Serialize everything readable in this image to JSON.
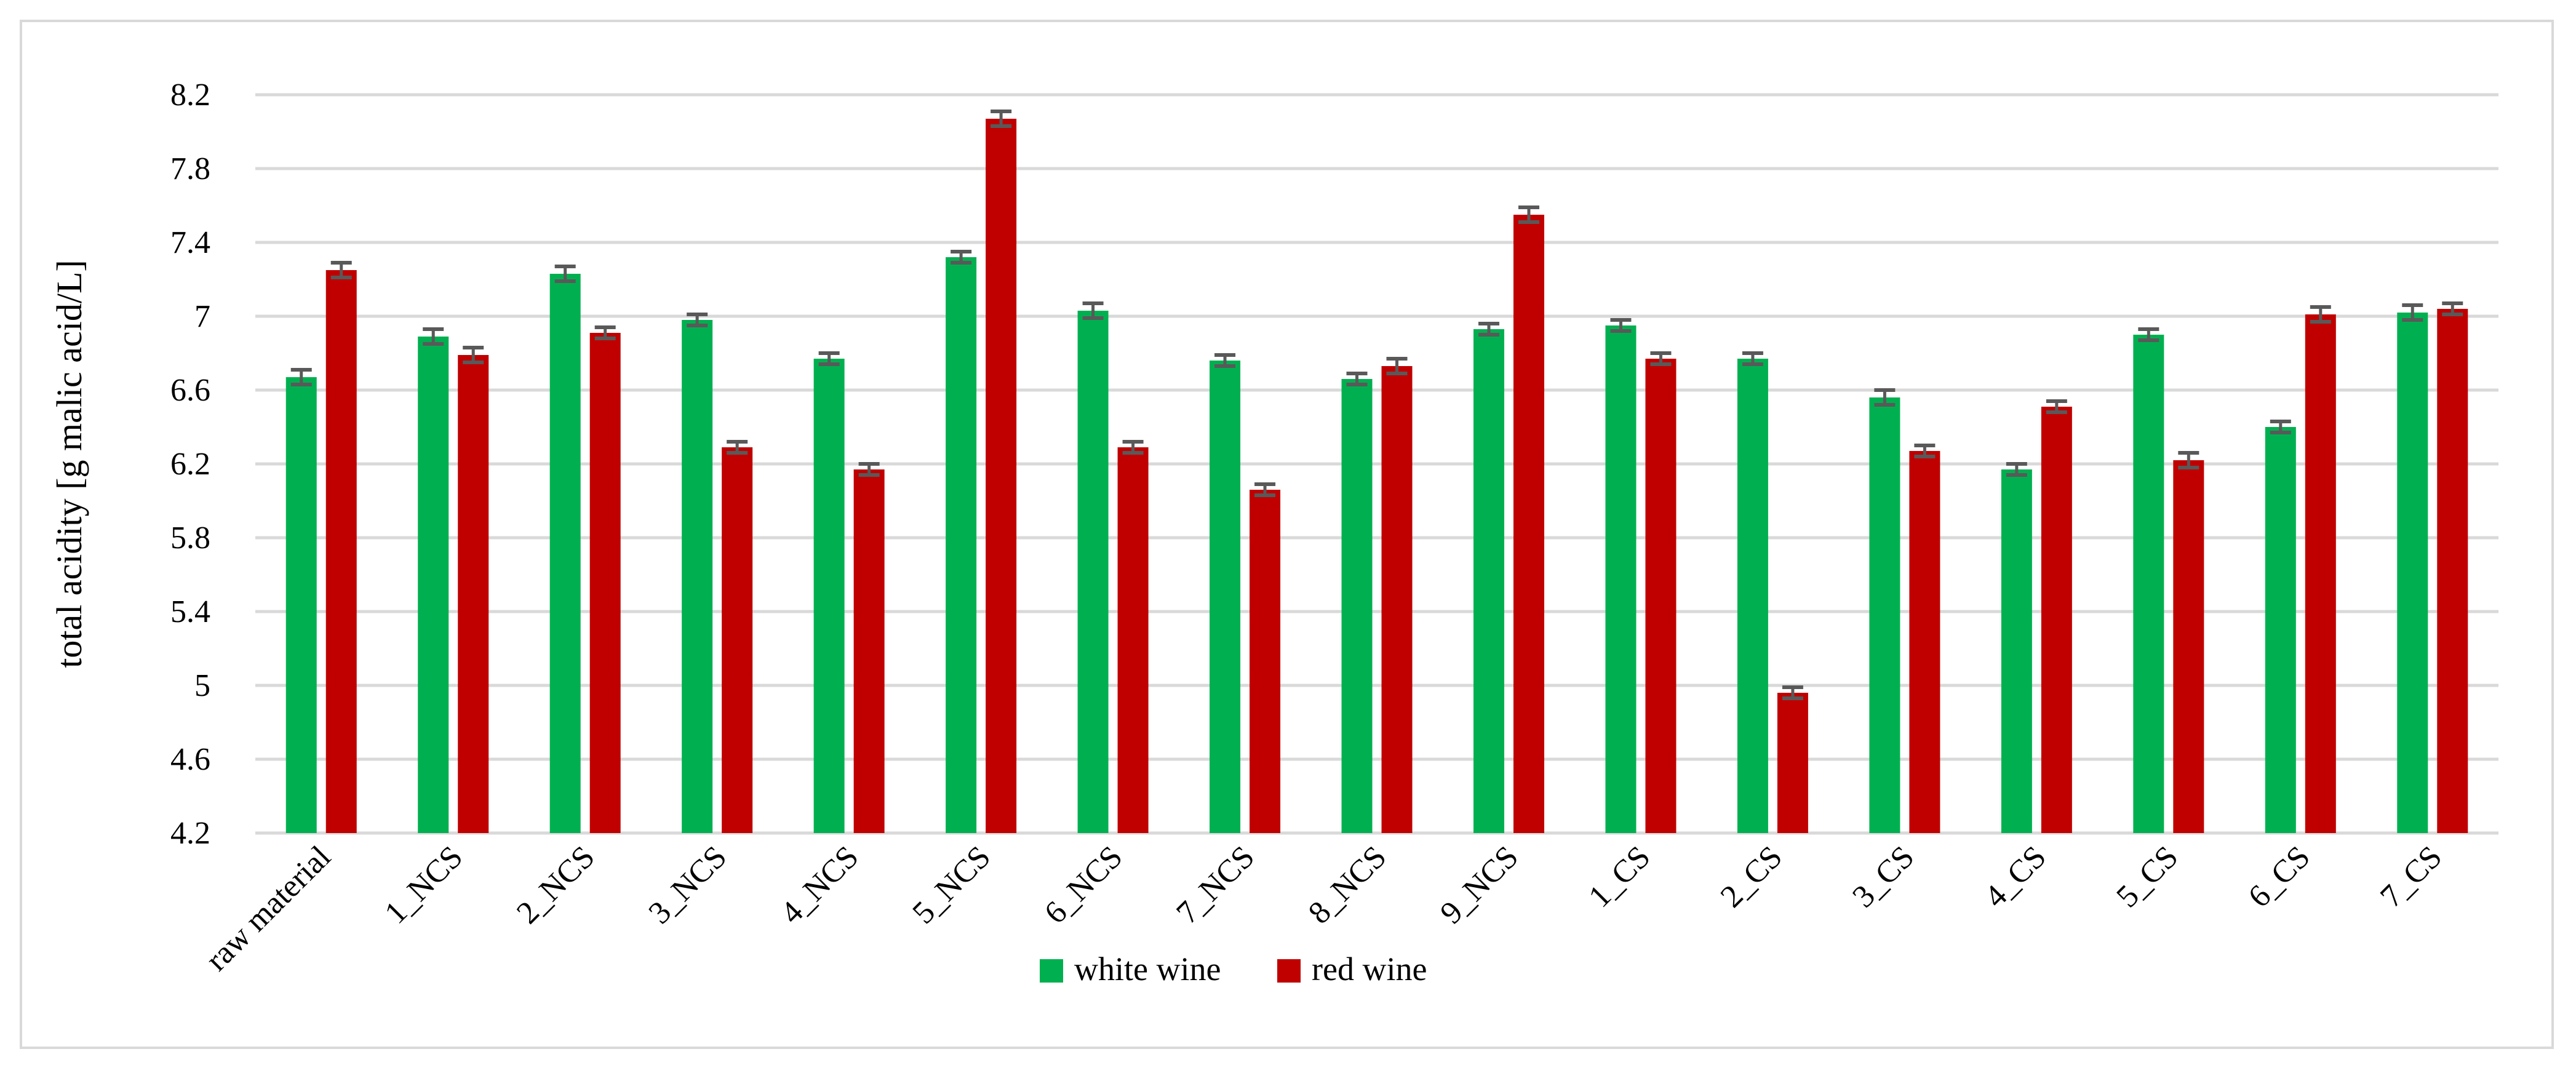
{
  "chart_data": {
    "type": "bar",
    "title": "",
    "xlabel": "",
    "ylabel": "total acidity [g malic acid/L]",
    "ylim": [
      4.2,
      8.2
    ],
    "yticks": [
      "4.2",
      "4.6",
      "5",
      "5.4",
      "5.8",
      "6.2",
      "6.6",
      "7",
      "7.4",
      "7.8",
      "8.2"
    ],
    "grid": true,
    "legend_position": "bottom",
    "error_bars": true,
    "categories": [
      "raw material",
      "1_NCS",
      "2_NCS",
      "3_NCS",
      "4_NCS",
      "5_NCS",
      "6_NCS",
      "7_NCS",
      "8_NCS",
      "9_NCS",
      "1_CS",
      "2_CS",
      "3_CS",
      "4_CS",
      "5_CS",
      "6_CS",
      "7_CS"
    ],
    "series": [
      {
        "name": "white wine",
        "color": "#00b050",
        "values": [
          6.67,
          6.89,
          7.23,
          6.98,
          6.77,
          7.32,
          7.03,
          6.76,
          6.66,
          6.93,
          6.95,
          6.77,
          6.56,
          6.17,
          6.9,
          6.4,
          7.02
        ],
        "errors": [
          0.04,
          0.04,
          0.04,
          0.03,
          0.03,
          0.03,
          0.04,
          0.03,
          0.03,
          0.03,
          0.03,
          0.03,
          0.04,
          0.03,
          0.03,
          0.03,
          0.04
        ]
      },
      {
        "name": "red wine",
        "color": "#c00000",
        "values": [
          7.25,
          6.79,
          6.91,
          6.29,
          6.17,
          8.07,
          6.29,
          6.06,
          6.73,
          7.55,
          6.77,
          4.96,
          6.27,
          6.51,
          6.22,
          7.01,
          7.04
        ],
        "errors": [
          0.04,
          0.04,
          0.03,
          0.03,
          0.03,
          0.04,
          0.03,
          0.03,
          0.04,
          0.04,
          0.03,
          0.03,
          0.03,
          0.03,
          0.04,
          0.04,
          0.03
        ]
      }
    ]
  }
}
